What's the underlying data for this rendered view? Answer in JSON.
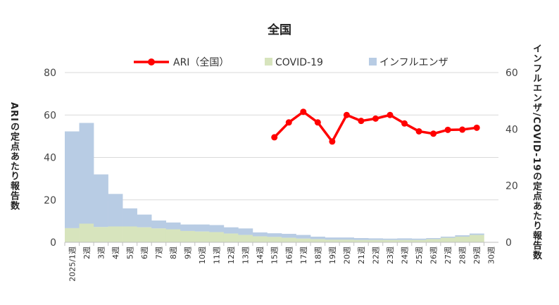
{
  "chart_data": {
    "type": "area",
    "title": "全国",
    "ylabel_left": "ARIの定点あたり報告数",
    "ylabel_right": "インフルエンザ/COVID-19の定点あたり報告数",
    "categories": [
      "2025/1週",
      "2週",
      "3週",
      "4週",
      "5週",
      "6週",
      "7週",
      "8週",
      "9週",
      "10週",
      "11週",
      "12週",
      "13週",
      "14週",
      "15週",
      "16週",
      "17週",
      "18週",
      "19週",
      "20週",
      "21週",
      "22週",
      "23週",
      "24週",
      "25週",
      "26週",
      "27週",
      "28週",
      "29週",
      "30週"
    ],
    "ylim_left": [
      0,
      80
    ],
    "yticks_left": [
      0,
      20,
      40,
      60,
      80
    ],
    "ylim_right": [
      0,
      60
    ],
    "yticks_right": [
      0,
      20,
      40,
      60
    ],
    "legend": [
      "ARI（全国）",
      "COVID-19",
      "インフルエンザ"
    ],
    "series": [
      {
        "name": "COVID-19",
        "axis": "right",
        "kind": "stacked-area",
        "color": "#d7e4bd",
        "values": [
          5.0,
          6.6,
          5.4,
          5.6,
          5.6,
          5.3,
          4.9,
          4.6,
          4.0,
          3.8,
          3.6,
          3.1,
          2.6,
          2.1,
          1.9,
          1.6,
          1.3,
          1.1,
          0.9,
          0.9,
          0.8,
          0.8,
          0.8,
          0.8,
          0.8,
          1.1,
          1.6,
          2.0,
          2.6,
          null
        ]
      },
      {
        "name": "インフルエンザ",
        "axis": "right",
        "kind": "stacked-area",
        "color": "#b8cce4",
        "values": [
          34.2,
          35.6,
          18.6,
          11.5,
          6.4,
          4.5,
          2.8,
          2.4,
          2.3,
          2.5,
          2.5,
          2.2,
          2.3,
          1.4,
          1.3,
          1.4,
          1.3,
          0.9,
          0.8,
          0.8,
          0.7,
          0.6,
          0.5,
          0.6,
          0.5,
          0.4,
          0.4,
          0.5,
          0.5,
          null
        ]
      },
      {
        "name": "ARI（全国）",
        "axis": "left",
        "kind": "line",
        "color": "#ff0000",
        "values": [
          null,
          null,
          null,
          null,
          null,
          null,
          null,
          null,
          null,
          null,
          null,
          null,
          null,
          null,
          49.5,
          56.5,
          61.5,
          56.5,
          47.5,
          60.0,
          57.2,
          58.3,
          60.0,
          56.0,
          52.3,
          51.2,
          53.0,
          53.1,
          54.0,
          null
        ]
      }
    ],
    "grid": "horizontal",
    "legend_position": "top"
  }
}
